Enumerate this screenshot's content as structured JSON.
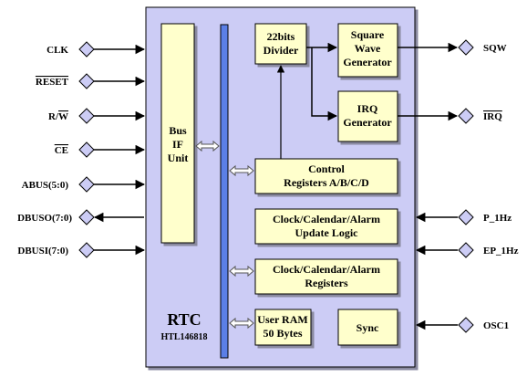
{
  "diagram": {
    "chip_name": "RTC",
    "chip_part": "HTL146818",
    "blocks": {
      "bus_if": [
        "Bus",
        "IF",
        "Unit"
      ],
      "divider": [
        "22bits",
        "Divider"
      ],
      "square_wave": [
        "Square",
        "Wave",
        "Generator"
      ],
      "irq_gen": [
        "IRQ",
        "Generator"
      ],
      "control_regs": [
        "Control",
        "Registers A/B/C/D"
      ],
      "update_logic": [
        "Clock/Calendar/Alarm",
        "Update Logic"
      ],
      "ccal_regs": [
        "Clock/Calendar/Alarm",
        "Registers"
      ],
      "user_ram": [
        "User RAM",
        "50 Bytes"
      ],
      "sync": [
        "Sync"
      ]
    },
    "left_pins": {
      "clk": "CLK",
      "reset": "RESET",
      "rw_r": "R/",
      "rw_w": "W",
      "ce": "CE",
      "abus": "ABUS(5:0)",
      "dbuso": "DBUSO(7:0)",
      "dbusi": "DBUSI(7:0)"
    },
    "right_pins": {
      "sqw": "SQW",
      "irq": "IRQ",
      "p1hz": "P_1Hz",
      "ep1hz": "EP_1Hz",
      "osc1": "OSC1"
    },
    "colors": {
      "chip_fill": "#ccccf5",
      "block_fill": "#ffffcc",
      "bus_fill": "#5b7fe6",
      "pin_fill": "#ccccf5"
    }
  }
}
